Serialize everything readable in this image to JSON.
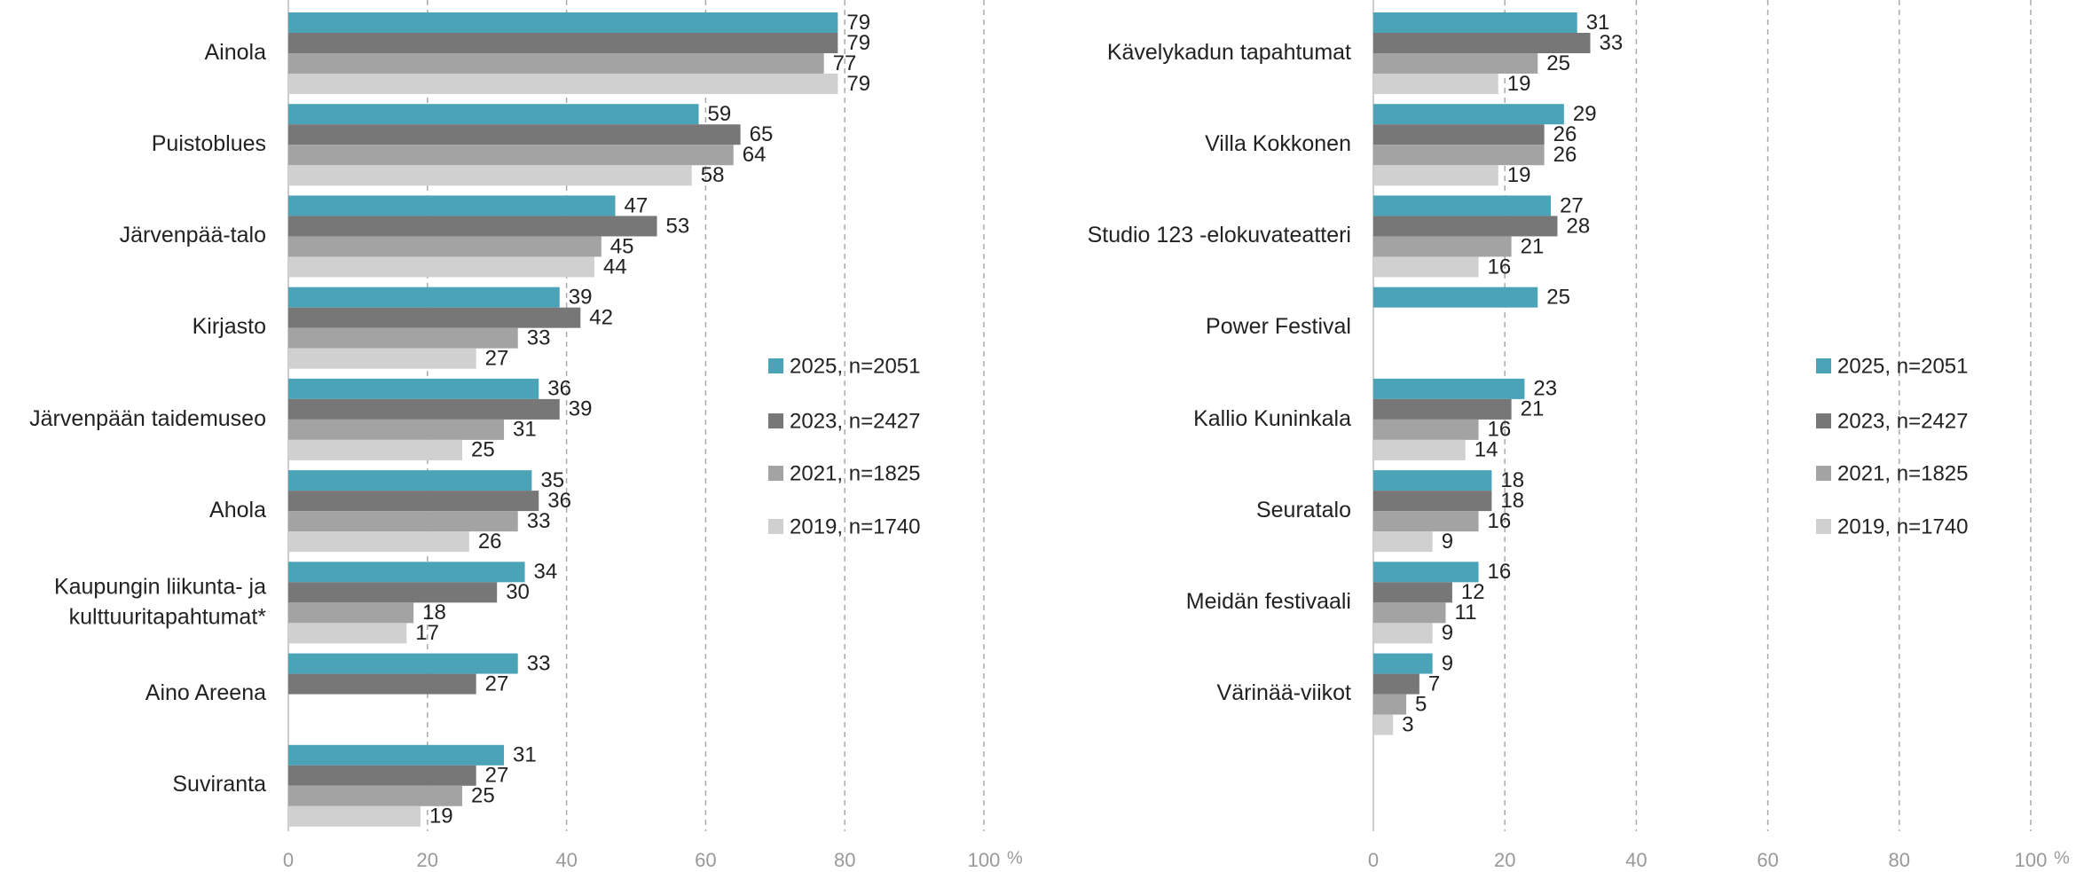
{
  "chart_data": [
    {
      "type": "bar",
      "orientation": "horizontal",
      "categories": [
        "Ainola",
        "Puistoblues",
        "Järvenpää-talo",
        "Kirjasto",
        "Järvenpään taidemuseo",
        "Ahola",
        "Kaupungin liikunta- ja kulttuuritapahtumat*",
        "Aino Areena",
        "Suviranta"
      ],
      "series": [
        {
          "name": "2025, n=2051",
          "color": "#4ba3b8",
          "values": [
            79,
            59,
            47,
            39,
            36,
            35,
            34,
            33,
            31
          ]
        },
        {
          "name": "2023, n=2427",
          "color": "#777777",
          "values": [
            79,
            65,
            53,
            42,
            39,
            36,
            30,
            27,
            27
          ]
        },
        {
          "name": "2021, n=1825",
          "color": "#a3a3a3",
          "values": [
            77,
            64,
            45,
            33,
            31,
            33,
            18,
            null,
            25
          ]
        },
        {
          "name": "2019, n=1740",
          "color": "#d0d0d0",
          "values": [
            79,
            58,
            44,
            27,
            25,
            26,
            17,
            null,
            19
          ]
        }
      ],
      "xlim": [
        0,
        100
      ],
      "xticks": [
        0,
        20,
        40,
        60,
        80,
        100
      ],
      "xlabel": "%",
      "grid": true,
      "legend": "right"
    },
    {
      "type": "bar",
      "orientation": "horizontal",
      "categories": [
        "Kävelykadun tapahtumat",
        "Villa Kokkonen",
        "Studio 123 -elokuvateatteri",
        "Power Festival",
        "Kallio Kuninkala",
        "Seuratalo",
        "Meidän festivaali",
        "Värinää-viikot"
      ],
      "series": [
        {
          "name": "2025, n=2051",
          "color": "#4ba3b8",
          "values": [
            31,
            29,
            27,
            25,
            23,
            18,
            16,
            9
          ]
        },
        {
          "name": "2023, n=2427",
          "color": "#777777",
          "values": [
            33,
            26,
            28,
            null,
            21,
            18,
            12,
            7
          ]
        },
        {
          "name": "2021, n=1825",
          "color": "#a3a3a3",
          "values": [
            25,
            26,
            21,
            null,
            16,
            16,
            11,
            5
          ]
        },
        {
          "name": "2019, n=1740",
          "color": "#d0d0d0",
          "values": [
            19,
            19,
            16,
            null,
            14,
            9,
            9,
            3
          ]
        }
      ],
      "xlim": [
        0,
        100
      ],
      "xticks": [
        0,
        20,
        40,
        60,
        80,
        100
      ],
      "xlabel": "%",
      "grid": true,
      "legend": "right"
    }
  ]
}
